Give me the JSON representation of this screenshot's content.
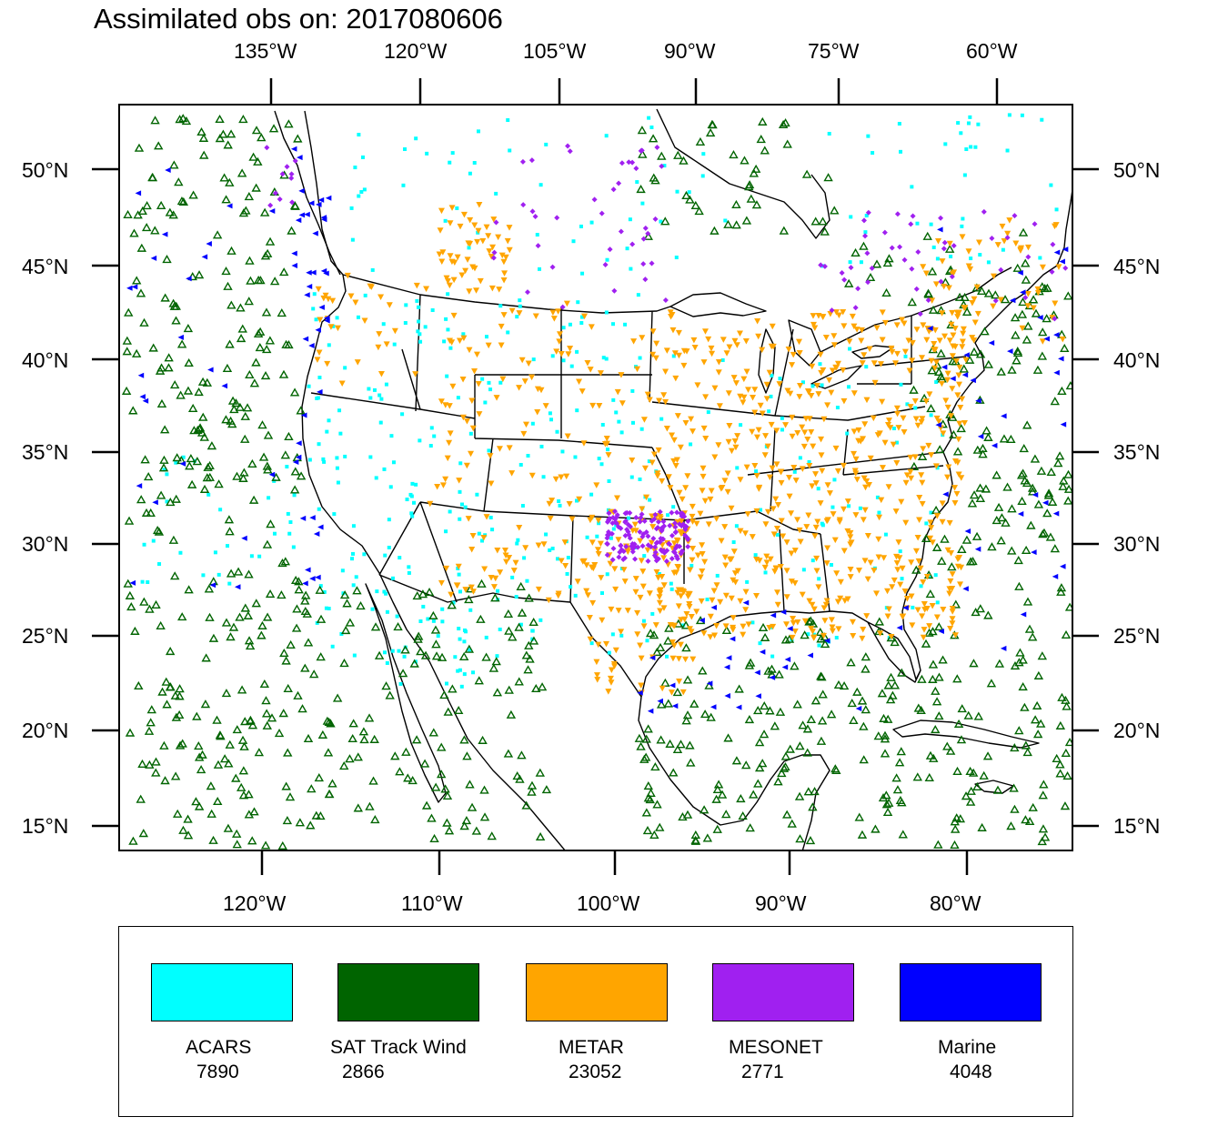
{
  "title": "Assimilated obs on: 2017080606",
  "top_axis_labels": [
    "135°W",
    "120°W",
    "105°W",
    "90°W",
    "75°W",
    "60°W"
  ],
  "bottom_axis_labels": [
    "120°W",
    "110°W",
    "100°W",
    "90°W",
    "80°W"
  ],
  "lat_labels": [
    "50°N",
    "45°N",
    "40°N",
    "35°N",
    "30°N",
    "25°N",
    "20°N",
    "15°N"
  ],
  "legend": [
    {
      "name": "ACARS",
      "count": "7890",
      "color": "#00ffff"
    },
    {
      "name": "SAT Track Wind",
      "count": "2866",
      "color": "#006400"
    },
    {
      "name": "METAR",
      "count": "23052",
      "color": "#ffa500"
    },
    {
      "name": "MESONET",
      "count": "2771",
      "color": "#a020f0"
    },
    {
      "name": "Marine",
      "count": "4048",
      "color": "#0000ff"
    }
  ],
  "chart_data": {
    "type": "scatter",
    "map_domain": {
      "lon_range": [
        -128,
        -74.5
      ],
      "lat_range": [
        13.5,
        53.5
      ],
      "projection": "Lambert conformal"
    },
    "series": [
      {
        "name": "ACARS",
        "count": 7890,
        "marker": "square",
        "color": "#00ffff"
      },
      {
        "name": "SAT Track Wind",
        "count": 2866,
        "marker": "triangle-up-open",
        "color": "#006400"
      },
      {
        "name": "METAR",
        "count": 23052,
        "marker": "triangle-down",
        "color": "#ffa500"
      },
      {
        "name": "MESONET",
        "count": 2771,
        "marker": "diamond",
        "color": "#a020f0"
      },
      {
        "name": "Marine",
        "count": 4048,
        "marker": "triangle-left",
        "color": "#0000ff"
      }
    ]
  }
}
